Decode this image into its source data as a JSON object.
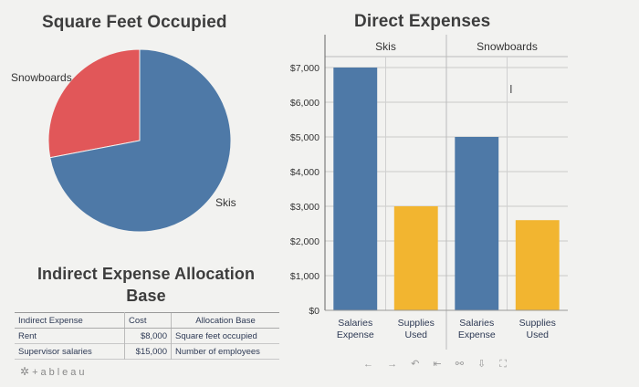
{
  "pie": {
    "title": "Square Feet Occupied",
    "labels": {
      "snowboards": "Snowboards",
      "skis": "Skis"
    }
  },
  "bars": {
    "title": "Direct Expenses"
  },
  "allocation": {
    "title_line1": "Indirect Expense Allocation",
    "title_line2": "Base",
    "headers": {
      "expense": "Indirect Expense",
      "cost": "Cost",
      "base": "Allocation Base"
    },
    "rows": [
      {
        "expense": "Rent",
        "cost": "$8,000",
        "base": "Square feet occupied"
      },
      {
        "expense": "Supervisor salaries",
        "cost": "$15,000",
        "base": "Number of employees"
      }
    ]
  },
  "logo": {
    "text": "+ableau"
  },
  "colors": {
    "blue": "#4e79a7",
    "red": "#e15759",
    "orange": "#f2b530"
  },
  "chart_data": [
    {
      "type": "pie",
      "title": "Square Feet Occupied",
      "slices": [
        {
          "name": "Snowboards",
          "value": 28,
          "color": "#e15759"
        },
        {
          "name": "Skis",
          "value": 72,
          "color": "#4e79a7"
        }
      ]
    },
    {
      "type": "bar",
      "title": "Direct Expenses",
      "panels": [
        "Skis",
        "Snowboards"
      ],
      "categories": [
        "Salaries\nExpense",
        "Supplies\nUsed"
      ],
      "series": [
        {
          "panel": "Skis",
          "values": [
            7000,
            3000
          ]
        },
        {
          "panel": "Snowboards",
          "values": [
            5000,
            2600
          ]
        }
      ],
      "ylim": [
        0,
        7000
      ],
      "yticks": [
        "$0",
        "$1,000",
        "$2,000",
        "$3,000",
        "$4,000",
        "$5,000",
        "$6,000",
        "$7,000"
      ],
      "grid": true
    }
  ]
}
